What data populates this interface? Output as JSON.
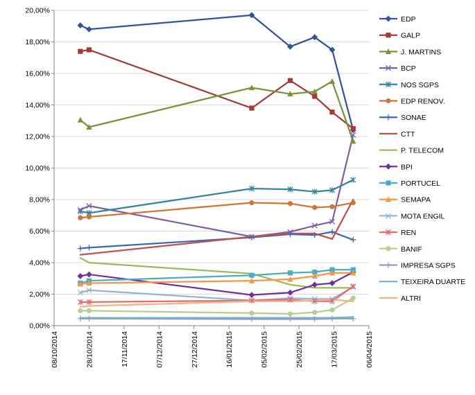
{
  "chart_data": {
    "type": "line",
    "title": "",
    "xlabel": "",
    "ylabel": "",
    "x_axis": {
      "type": "date",
      "range": [
        "2014-10-08",
        "2015-04-06"
      ],
      "tick_labels": [
        "08/10/2014",
        "28/10/2014",
        "17/11/2014",
        "07/12/2014",
        "27/12/2014",
        "16/01/2015",
        "05/02/2015",
        "25/02/2015",
        "17/03/2015",
        "06/04/2015"
      ]
    },
    "y_axis": {
      "range": [
        0,
        20
      ],
      "unit": "%",
      "tick_labels": [
        "0,00%",
        "2,00%",
        "4,00%",
        "6,00%",
        "8,00%",
        "10,00%",
        "12,00%",
        "14,00%",
        "16,00%",
        "18,00%",
        "20,00%"
      ]
    },
    "grid": "horizontal",
    "legend_position": "right",
    "series": [
      {
        "name": "EDP",
        "color": "#2F5597",
        "marker": "diamond",
        "points": [
          [
            "2014-10-23",
            19.05
          ],
          [
            "2014-10-28",
            18.8
          ],
          [
            "2015-01-29",
            19.7
          ],
          [
            "2015-02-20",
            17.7
          ],
          [
            "2015-03-06",
            18.3
          ],
          [
            "2015-03-16",
            17.5
          ],
          [
            "2015-03-28",
            12.4
          ]
        ]
      },
      {
        "name": "GALP",
        "color": "#A33B38",
        "marker": "square",
        "points": [
          [
            "2014-10-23",
            17.4
          ],
          [
            "2014-10-28",
            17.5
          ],
          [
            "2015-01-29",
            13.8
          ],
          [
            "2015-02-20",
            15.55
          ],
          [
            "2015-03-06",
            14.55
          ],
          [
            "2015-03-16",
            13.55
          ],
          [
            "2015-03-28",
            12.5
          ]
        ]
      },
      {
        "name": "J. MARTINS",
        "color": "#77933C",
        "marker": "triangle",
        "points": [
          [
            "2014-10-23",
            13.05
          ],
          [
            "2014-10-28",
            12.6
          ],
          [
            "2015-01-29",
            15.1
          ],
          [
            "2015-02-20",
            14.7
          ],
          [
            "2015-03-06",
            14.85
          ],
          [
            "2015-03-16",
            15.5
          ],
          [
            "2015-03-28",
            11.7
          ]
        ]
      },
      {
        "name": "BCP",
        "color": "#7F5FA4",
        "marker": "x",
        "points": [
          [
            "2014-10-23",
            7.35
          ],
          [
            "2014-10-28",
            7.6
          ],
          [
            "2015-01-29",
            5.65
          ],
          [
            "2015-02-20",
            5.95
          ],
          [
            "2015-03-06",
            6.35
          ],
          [
            "2015-03-16",
            6.6
          ],
          [
            "2015-03-28",
            12.1
          ]
        ]
      },
      {
        "name": "NOS SGPS",
        "color": "#31859C",
        "marker": "star",
        "points": [
          [
            "2014-10-23",
            7.25
          ],
          [
            "2014-10-28",
            7.15
          ],
          [
            "2015-01-29",
            8.7
          ],
          [
            "2015-02-20",
            8.65
          ],
          [
            "2015-03-06",
            8.5
          ],
          [
            "2015-03-16",
            8.6
          ],
          [
            "2015-03-28",
            9.25
          ]
        ]
      },
      {
        "name": "EDP RENOV.",
        "color": "#D07634",
        "marker": "circle",
        "points": [
          [
            "2014-10-23",
            6.85
          ],
          [
            "2014-10-28",
            6.9
          ],
          [
            "2015-01-29",
            7.8
          ],
          [
            "2015-02-20",
            7.75
          ],
          [
            "2015-03-06",
            7.5
          ],
          [
            "2015-03-16",
            7.55
          ],
          [
            "2015-03-28",
            7.8
          ]
        ]
      },
      {
        "name": "SONAE",
        "color": "#3F67B0",
        "marker": "plus",
        "points": [
          [
            "2014-10-23",
            4.9
          ],
          [
            "2014-10-28",
            4.95
          ],
          [
            "2015-01-29",
            5.6
          ],
          [
            "2015-02-20",
            5.8
          ],
          [
            "2015-03-06",
            5.75
          ],
          [
            "2015-03-16",
            5.95
          ],
          [
            "2015-03-28",
            5.45
          ]
        ]
      },
      {
        "name": "CTT",
        "color": "#C0504D",
        "marker": "none",
        "points": [
          [
            "2014-10-23",
            4.5
          ],
          [
            "2015-01-29",
            5.65
          ],
          [
            "2015-02-20",
            5.85
          ],
          [
            "2015-03-06",
            5.85
          ],
          [
            "2015-03-16",
            5.5
          ],
          [
            "2015-03-28",
            8.0
          ]
        ]
      },
      {
        "name": "P. TELECOM",
        "color": "#9BBB59",
        "marker": "none",
        "points": [
          [
            "2014-10-23",
            4.3
          ],
          [
            "2014-10-28",
            4.0
          ],
          [
            "2015-01-29",
            3.3
          ],
          [
            "2015-02-20",
            2.6
          ],
          [
            "2015-03-06",
            2.4
          ],
          [
            "2015-03-16",
            2.4
          ],
          [
            "2015-03-28",
            2.4
          ]
        ]
      },
      {
        "name": "BPI",
        "color": "#7030A0",
        "marker": "diamond",
        "points": [
          [
            "2014-10-23",
            3.15
          ],
          [
            "2014-10-28",
            3.25
          ],
          [
            "2015-01-29",
            1.95
          ],
          [
            "2015-02-20",
            2.1
          ],
          [
            "2015-03-06",
            2.6
          ],
          [
            "2015-03-16",
            2.7
          ],
          [
            "2015-03-28",
            3.4
          ]
        ]
      },
      {
        "name": "PORTUCEL",
        "color": "#4BACC6",
        "marker": "square",
        "points": [
          [
            "2014-10-23",
            2.7
          ],
          [
            "2014-10-28",
            2.85
          ],
          [
            "2015-01-29",
            3.2
          ],
          [
            "2015-02-20",
            3.35
          ],
          [
            "2015-03-06",
            3.4
          ],
          [
            "2015-03-16",
            3.55
          ],
          [
            "2015-03-28",
            3.55
          ]
        ]
      },
      {
        "name": "SEMAPA",
        "color": "#F79646",
        "marker": "triangle",
        "points": [
          [
            "2014-10-23",
            2.65
          ],
          [
            "2014-10-28",
            2.7
          ],
          [
            "2015-01-29",
            2.85
          ],
          [
            "2015-02-20",
            2.95
          ],
          [
            "2015-03-06",
            3.15
          ],
          [
            "2015-03-16",
            3.35
          ],
          [
            "2015-03-28",
            3.35
          ]
        ]
      },
      {
        "name": "MOTA ENGIL",
        "color": "#95B3D7",
        "marker": "x",
        "points": [
          [
            "2014-10-23",
            2.1
          ],
          [
            "2014-10-28",
            2.25
          ],
          [
            "2015-01-29",
            1.6
          ],
          [
            "2015-02-20",
            1.75
          ],
          [
            "2015-03-06",
            1.7
          ],
          [
            "2015-03-16",
            1.7
          ],
          [
            "2015-03-28",
            2.45
          ]
        ]
      },
      {
        "name": "REN",
        "color": "#E46C6C",
        "marker": "star",
        "points": [
          [
            "2014-10-23",
            1.5
          ],
          [
            "2014-10-28",
            1.5
          ],
          [
            "2015-01-29",
            1.6
          ],
          [
            "2015-02-20",
            1.65
          ],
          [
            "2015-03-06",
            1.55
          ],
          [
            "2015-03-16",
            1.55
          ],
          [
            "2015-03-28",
            2.5
          ]
        ]
      },
      {
        "name": "BANIF",
        "color": "#B5CF8D",
        "marker": "circle",
        "points": [
          [
            "2014-10-23",
            0.95
          ],
          [
            "2014-10-28",
            0.95
          ],
          [
            "2015-01-29",
            0.8
          ],
          [
            "2015-02-20",
            0.75
          ],
          [
            "2015-03-06",
            0.85
          ],
          [
            "2015-03-16",
            1.0
          ],
          [
            "2015-03-28",
            1.75
          ]
        ]
      },
      {
        "name": "IMPRESA SGPS",
        "color": "#A193C2",
        "marker": "plus",
        "points": [
          [
            "2014-10-23",
            0.45
          ],
          [
            "2014-10-28",
            0.45
          ],
          [
            "2015-01-29",
            0.42
          ],
          [
            "2015-02-20",
            0.42
          ],
          [
            "2015-03-06",
            0.42
          ],
          [
            "2015-03-16",
            0.45
          ],
          [
            "2015-03-28",
            0.45
          ]
        ]
      },
      {
        "name": "TEIXEIRA DUARTE",
        "color": "#6BB6CF",
        "marker": "none",
        "points": [
          [
            "2014-10-23",
            0.5
          ],
          [
            "2014-10-28",
            0.5
          ],
          [
            "2015-01-29",
            0.5
          ],
          [
            "2015-02-20",
            0.5
          ],
          [
            "2015-03-06",
            0.5
          ],
          [
            "2015-03-16",
            0.5
          ],
          [
            "2015-03-28",
            0.55
          ]
        ]
      },
      {
        "name": "ALTRI",
        "color": "#F4B183",
        "marker": "none",
        "points": [
          [
            "2014-10-23",
            1.2
          ],
          [
            "2014-10-28",
            1.25
          ],
          [
            "2015-01-29",
            1.55
          ],
          [
            "2015-02-20",
            1.55
          ],
          [
            "2015-03-06",
            1.6
          ],
          [
            "2015-03-16",
            1.65
          ],
          [
            "2015-03-28",
            1.55
          ]
        ]
      }
    ]
  }
}
